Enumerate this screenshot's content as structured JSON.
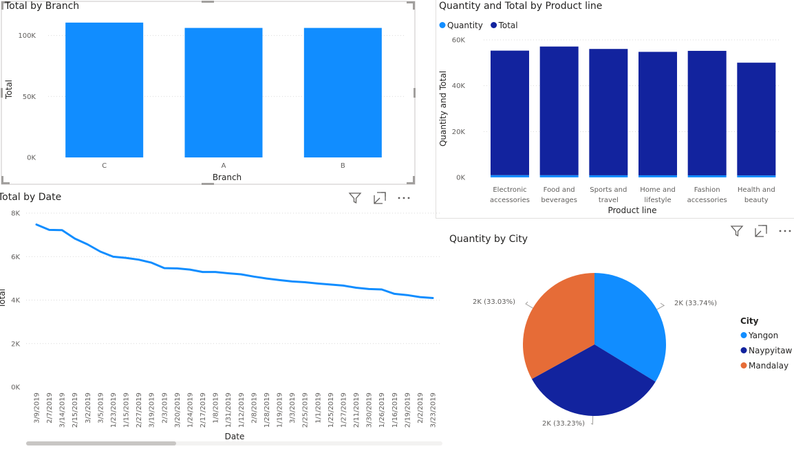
{
  "visuals": [
    {
      "title": "Total by Branch",
      "chart_data": {
        "type": "bar",
        "categories": [
          "C",
          "A",
          "B"
        ],
        "values": [
          110568.71,
          106200.37,
          106197.67
        ],
        "xlabel": "Branch",
        "ylabel": "Total",
        "ylim": [
          0,
          115000
        ],
        "yticks": [
          0,
          50000,
          100000
        ],
        "ytick_labels": [
          "0K",
          "50K",
          "100K"
        ],
        "grid": true,
        "color": "#118DFF"
      }
    },
    {
      "title": "Quantity and Total by Product line",
      "chart_data": {
        "type": "bar",
        "stacked": true,
        "categories": [
          "Electronic accessories",
          "Food and beverages",
          "Sports and travel",
          "Home and lifestyle",
          "Fashion accessories",
          "Health and beauty"
        ],
        "category_lines": [
          [
            "Electronic",
            "accessories"
          ],
          [
            "Food and",
            "beverages"
          ],
          [
            "Sports and",
            "travel"
          ],
          [
            "Home and",
            "lifestyle"
          ],
          [
            "Fashion",
            "accessories"
          ],
          [
            "Health and",
            "beauty"
          ]
        ],
        "series": [
          {
            "name": "Quantity",
            "color": "#118DFF",
            "values": [
              971,
              952,
              920,
              911,
              902,
              854
            ]
          },
          {
            "name": "Total",
            "color": "#12239E",
            "values": [
              54337.53,
              56144.84,
              55122.83,
              53861.91,
              54305.9,
              49193.74
            ]
          }
        ],
        "xlabel": "Product line",
        "ylabel": "Quantity and Total",
        "ylim": [
          0,
          60000
        ],
        "yticks": [
          0,
          20000,
          40000,
          60000
        ],
        "ytick_labels": [
          "0K",
          "20K",
          "40K",
          "60K"
        ],
        "legend_position": "top-left",
        "grid": true
      }
    },
    {
      "title": "Total by Date",
      "chart_data": {
        "type": "line",
        "x": [
          "3/9/2019",
          "2/7/2019",
          "3/14/2019",
          "2/15/2019",
          "3/2/2019",
          "3/5/2019",
          "1/23/2019",
          "1/15/2019",
          "2/27/2019",
          "3/19/2019",
          "2/3/2019",
          "3/20/2019",
          "1/24/2019",
          "2/17/2019",
          "1/8/2019",
          "1/31/2019",
          "1/12/2019",
          "2/8/2019",
          "1/28/2019",
          "1/19/2019",
          "3/3/2019",
          "2/25/2019",
          "1/1/2019",
          "1/25/2019",
          "1/27/2019",
          "2/11/2019",
          "3/30/2019",
          "1/26/2019",
          "1/16/2019",
          "2/19/2019",
          "2/2/2019",
          "3/23/2019"
        ],
        "y": [
          7474,
          7228,
          7215,
          6830,
          6560,
          6230,
          5994,
          5940,
          5860,
          5720,
          5470,
          5458,
          5403,
          5293,
          5293,
          5233,
          5185,
          5081,
          4993,
          4921,
          4856,
          4823,
          4763,
          4715,
          4666,
          4568,
          4509,
          4491,
          4288,
          4232,
          4140,
          4096
        ],
        "xlabel": "Date",
        "ylabel": "Total",
        "ylim": [
          0,
          8000
        ],
        "yticks": [
          0,
          2000,
          4000,
          6000,
          8000
        ],
        "ytick_labels": [
          "0K",
          "2K",
          "4K",
          "6K",
          "8K"
        ],
        "grid": true,
        "color": "#118DFF"
      }
    },
    {
      "title": "Quantity by City",
      "chart_data": {
        "type": "pie",
        "labels": [
          "Yangon",
          "Naypyitaw",
          "Mandalay"
        ],
        "values": [
          33.74,
          33.23,
          33.03
        ],
        "data_labels": [
          "2K (33.74%)",
          "2K (33.23%)",
          "2K (33.03%)"
        ],
        "colors": [
          "#118DFF",
          "#12239E",
          "#E66C37"
        ],
        "legend_title": "City",
        "legend_position": "right"
      }
    }
  ]
}
